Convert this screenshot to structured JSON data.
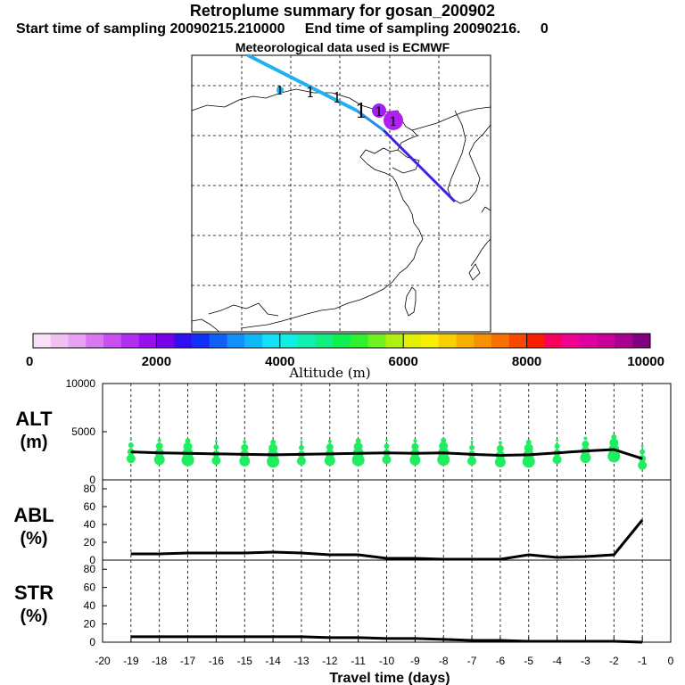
{
  "header": {
    "title": "Retroplume summary for gosan_200902",
    "start_label": "Start time of sampling 20090215.210000",
    "end_label": "End time of sampling 20090216.",
    "end_trail": "0",
    "met_label": "Meteorological data used is ECMWF"
  },
  "colorbar": {
    "ticks": [
      "0",
      "2000",
      "4000",
      "6000",
      "8000",
      "10000"
    ],
    "label": "Altitude (m)",
    "colors": [
      "#f8e0f8",
      "#f0c0f0",
      "#e8a0f0",
      "#d878f0",
      "#c850f0",
      "#b030f0",
      "#9810f0",
      "#7800e8",
      "#3010f0",
      "#1030f8",
      "#1060f8",
      "#1090f8",
      "#10b8f8",
      "#10e0f8",
      "#10f0e0",
      "#10f0b0",
      "#10f080",
      "#10f050",
      "#30f030",
      "#70f020",
      "#b0f010",
      "#e0f000",
      "#f8f000",
      "#f8d000",
      "#f8b000",
      "#f89000",
      "#f87000",
      "#f84800",
      "#f82000",
      "#f80060",
      "#f00090",
      "#e000a0",
      "#c80098",
      "#a80090",
      "#800080"
    ]
  },
  "map": {
    "marker_label": "1",
    "trajectory_colors": {
      "early": "#20b0f0",
      "late": "#4020e0"
    }
  },
  "chart_data": [
    {
      "type": "line",
      "panel": "ALT",
      "ylabel": "ALT",
      "yunit": "(m)",
      "ylim": [
        0,
        10000
      ],
      "yticks": [
        "10000",
        "5000",
        "0"
      ],
      "x": [
        -19,
        -18,
        -17,
        -16,
        -15,
        -14,
        -13,
        -12,
        -11,
        -10,
        -9,
        -8,
        -7,
        -6,
        -5,
        -4,
        -3,
        -2,
        -1
      ],
      "values": [
        2900,
        2800,
        2750,
        2700,
        2650,
        2600,
        2650,
        2700,
        2750,
        2800,
        2750,
        2800,
        2650,
        2550,
        2600,
        2800,
        3000,
        3150,
        2200
      ],
      "scatter_color": "#20ee60"
    },
    {
      "type": "line",
      "panel": "ABL",
      "ylabel": "ABL",
      "yunit": "(%)",
      "ylim": [
        0,
        90
      ],
      "yticks": [
        "80",
        "60",
        "40",
        "20",
        "0"
      ],
      "x": [
        -19,
        -18,
        -17,
        -16,
        -15,
        -14,
        -13,
        -12,
        -11,
        -10,
        -9,
        -8,
        -7,
        -6,
        -5,
        -4,
        -3,
        -2,
        -1
      ],
      "values": [
        7,
        7,
        8,
        8,
        8,
        9,
        8,
        6,
        6,
        2,
        2,
        1,
        1,
        1,
        6,
        3,
        4,
        6,
        45
      ]
    },
    {
      "type": "line",
      "panel": "STR",
      "ylabel": "STR",
      "yunit": "(%)",
      "ylim": [
        0,
        90
      ],
      "yticks": [
        "80",
        "60",
        "40",
        "20",
        "0"
      ],
      "x": [
        -19,
        -18,
        -17,
        -16,
        -15,
        -14,
        -13,
        -12,
        -11,
        -10,
        -9,
        -8,
        -7,
        -6,
        -5,
        -4,
        -3,
        -2,
        -1
      ],
      "values": [
        6,
        6,
        6,
        6,
        6,
        6,
        6,
        5,
        5,
        4,
        4,
        3,
        2,
        2,
        1,
        1,
        1,
        1,
        0
      ]
    }
  ],
  "xaxis": {
    "label": "Travel time (days)",
    "ticks": [
      "-20",
      "-19",
      "-18",
      "-17",
      "-16",
      "-15",
      "-14",
      "-13",
      "-12",
      "-11",
      "-10",
      "-9",
      "-8",
      "-7",
      "-6",
      "-5",
      "-4",
      "-3",
      "-2",
      "-1",
      "0"
    ]
  }
}
